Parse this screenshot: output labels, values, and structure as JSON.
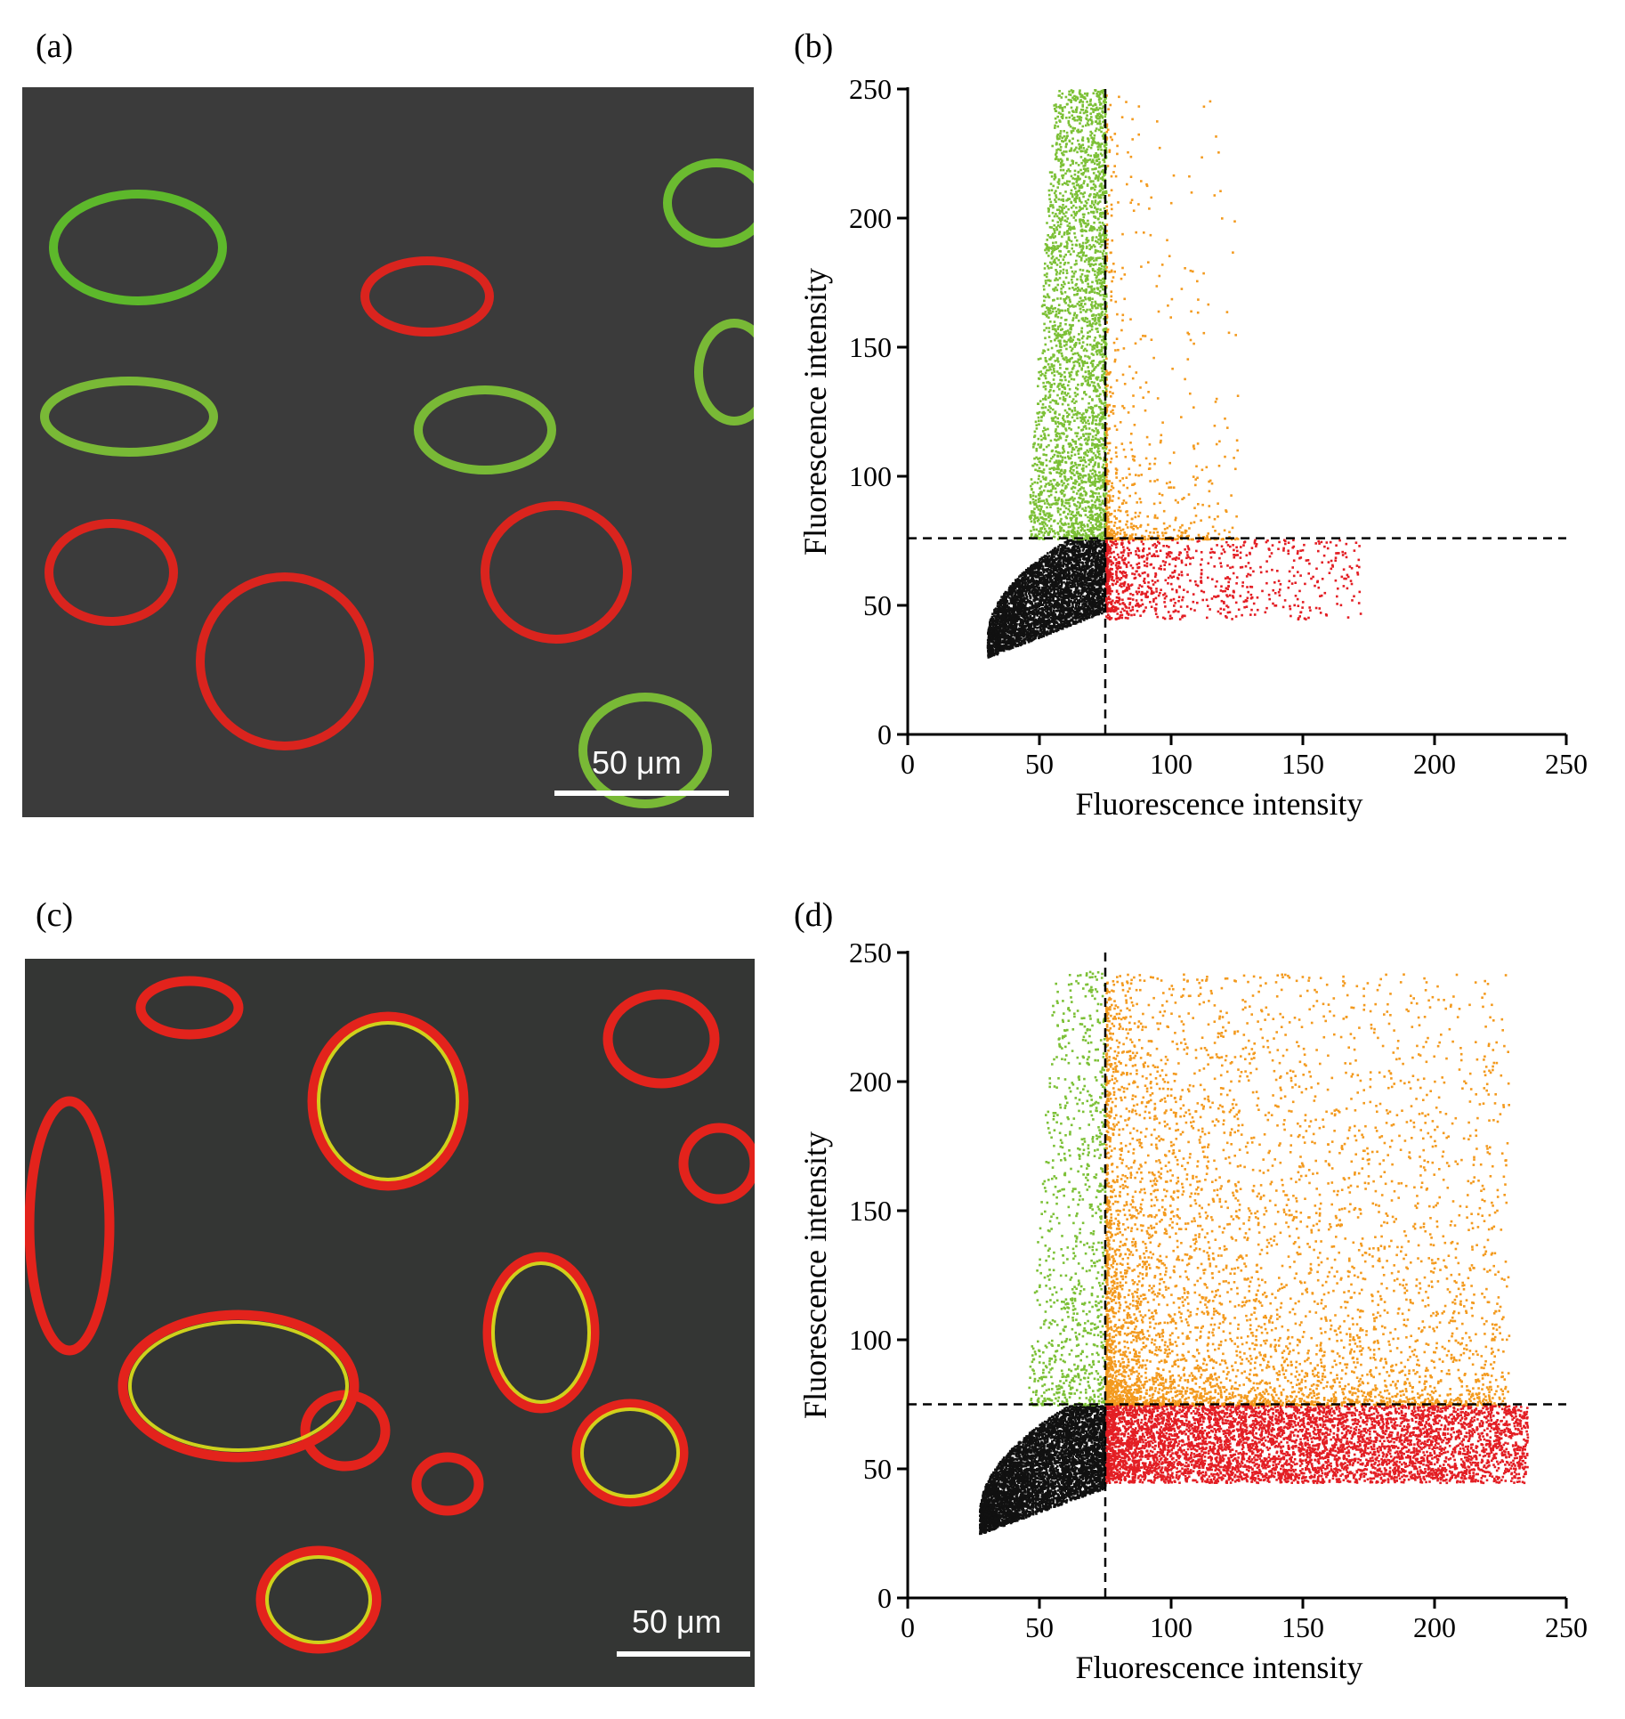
{
  "panels": {
    "a": {
      "label": "(a)",
      "scale_text": "50 μm"
    },
    "b": {
      "label": "(b)"
    },
    "c": {
      "label": "(c)",
      "scale_text": "50 μm"
    },
    "d": {
      "label": "(d)"
    }
  },
  "colors": {
    "background_image": "#3b3b3b",
    "green": "#7cc036",
    "orange": "#f39a1e",
    "red": "#e31e24",
    "black": "#111111",
    "threshold_line": "#000000"
  },
  "chart_data": [
    {
      "panel": "b",
      "type": "scatter",
      "xlabel": "Fluorescence intensity",
      "ylabel": "Fluorescence intensity",
      "xlim": [
        0,
        250
      ],
      "ylim": [
        0,
        250
      ],
      "xticks": [
        0,
        50,
        100,
        150,
        200,
        250
      ],
      "yticks": [
        0,
        50,
        100,
        150,
        200,
        250
      ],
      "thresholds": {
        "x": 75,
        "y": 76
      },
      "quadrants": {
        "lower_left": {
          "color": "black",
          "x": [
            30,
            75
          ],
          "y": [
            30,
            76
          ]
        },
        "upper_left": {
          "color": "green",
          "x": [
            45,
            75
          ],
          "y": [
            76,
            250
          ]
        },
        "upper_right": {
          "color": "orange",
          "x": [
            75,
            125
          ],
          "y": [
            76,
            248
          ]
        },
        "lower_right": {
          "color": "red",
          "x": [
            75,
            172
          ],
          "y": [
            45,
            76
          ]
        }
      }
    },
    {
      "panel": "d",
      "type": "scatter",
      "xlabel": "Fluorescence intensity",
      "ylabel": "Fluorescence intensity",
      "xlim": [
        0,
        250
      ],
      "ylim": [
        0,
        250
      ],
      "xticks": [
        0,
        50,
        100,
        150,
        200,
        250
      ],
      "yticks": [
        0,
        50,
        100,
        150,
        200,
        250
      ],
      "thresholds": {
        "x": 75,
        "y": 75
      },
      "quadrants": {
        "lower_left": {
          "color": "black",
          "x": [
            27,
            75
          ],
          "y": [
            25,
            75
          ]
        },
        "upper_left": {
          "color": "green",
          "x": [
            45,
            75
          ],
          "y": [
            75,
            243
          ]
        },
        "upper_right": {
          "color": "orange",
          "x": [
            75,
            228
          ],
          "y": [
            75,
            242
          ]
        },
        "lower_right": {
          "color": "red",
          "x": [
            75,
            235
          ],
          "y": [
            45,
            75
          ]
        }
      }
    }
  ]
}
